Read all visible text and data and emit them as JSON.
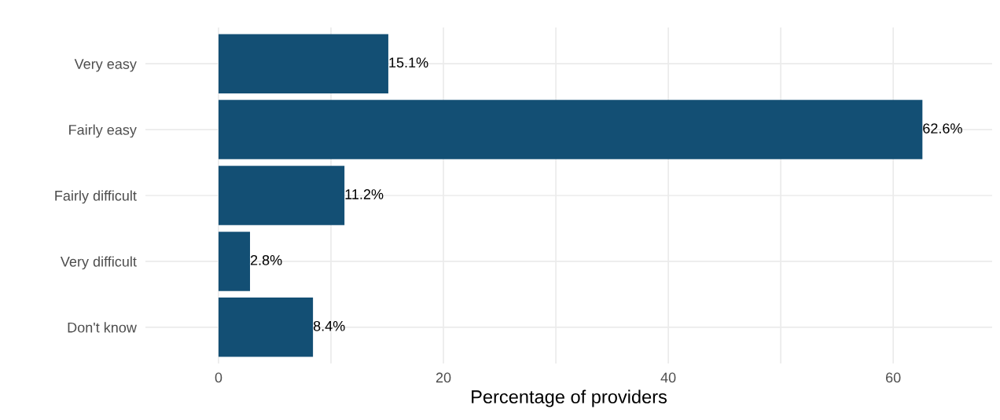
{
  "chart_data": {
    "type": "bar",
    "orientation": "horizontal",
    "xlabel": "Percentage of providers",
    "categories": [
      "Very easy",
      "Fairly easy",
      "Fairly difficult",
      "Very difficult",
      "Don't know"
    ],
    "values": [
      15.1,
      62.6,
      11.2,
      2.8,
      8.4
    ],
    "value_labels": [
      "15.1%",
      "62.6%",
      "11.2%",
      "2.8%",
      "8.4%"
    ],
    "color": "#134f74",
    "xlim": [
      -6.5,
      68.8
    ],
    "xticks": [
      0,
      {
        "value": 10,
        "label": null
      },
      20,
      {
        "value": 30,
        "label": null
      },
      40,
      {
        "value": 50,
        "label": null
      },
      60
    ],
    "grid": true,
    "legend": false
  }
}
